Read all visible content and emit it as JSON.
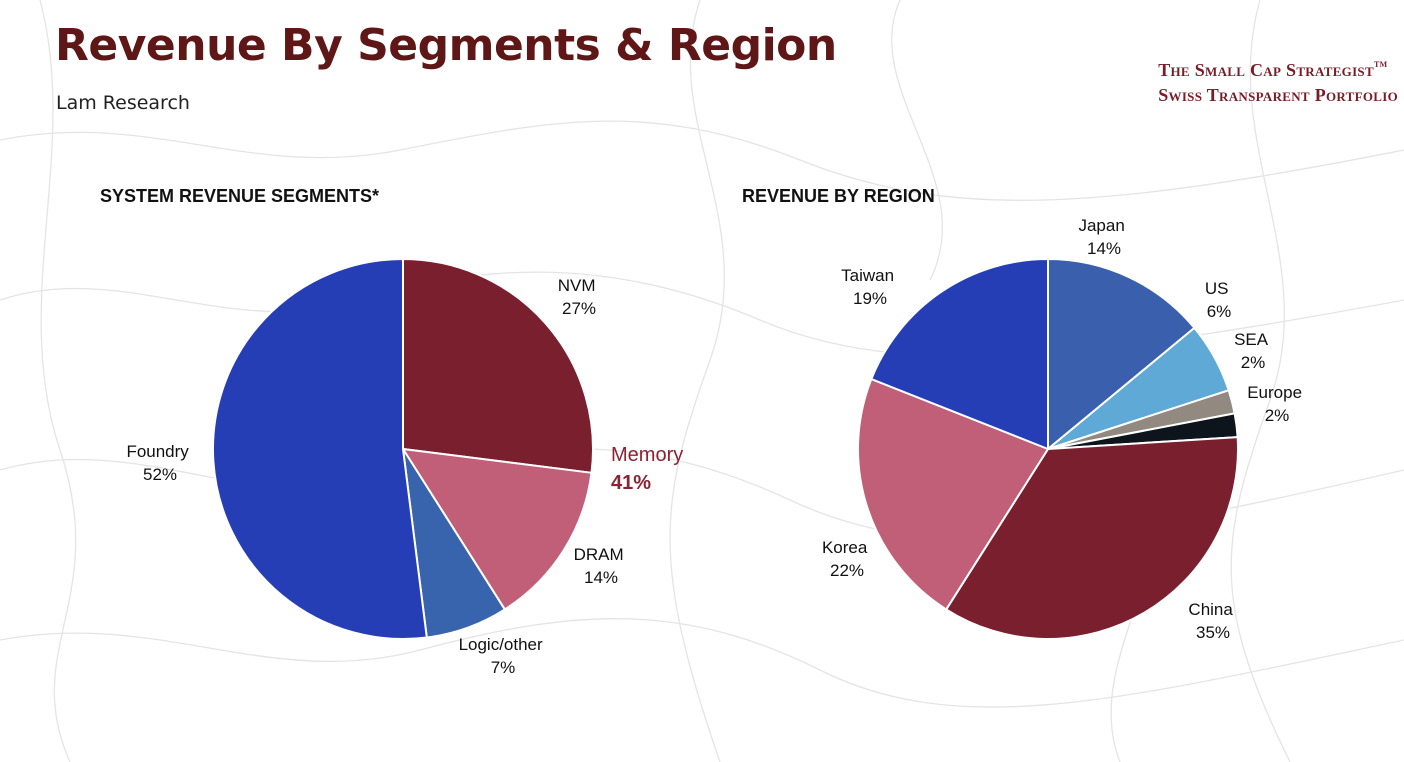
{
  "header": {
    "title": "Revenue By Segments & Region",
    "subtitle": "Lam Research"
  },
  "brand": {
    "line1": "The Small Cap Strategist",
    "tm": "TM",
    "line2": "Swiss Transparent Portfolio",
    "color": "#7a1c28"
  },
  "chart_data": [
    {
      "type": "pie",
      "title": "SYSTEM REVENUE SEGMENTS*",
      "categories": [
        "NVM",
        "DRAM",
        "Logic/other",
        "Foundry"
      ],
      "values": [
        27,
        14,
        7,
        52
      ],
      "labels": [
        "27%",
        "14%",
        "7%",
        "52%"
      ],
      "colors": [
        "#7a1f2e",
        "#c05f77",
        "#3864ad",
        "#253eb6"
      ],
      "annotations": [
        {
          "text": "Memory",
          "value": "41%",
          "color": "#8a2334",
          "covers": [
            "NVM",
            "DRAM"
          ]
        }
      ]
    },
    {
      "type": "pie",
      "title": "REVENUE BY REGION",
      "categories": [
        "Japan",
        "US",
        "SEA",
        "Europe",
        "China",
        "Korea",
        "Taiwan"
      ],
      "values": [
        14,
        6,
        2,
        2,
        35,
        22,
        19
      ],
      "labels": [
        "14%",
        "6%",
        "2%",
        "2%",
        "35%",
        "22%",
        "19%"
      ],
      "colors": [
        "#3a5fad",
        "#5fa9d6",
        "#928a80",
        "#0e141c",
        "#7a1f2e",
        "#c05f77",
        "#253eb6"
      ]
    }
  ]
}
